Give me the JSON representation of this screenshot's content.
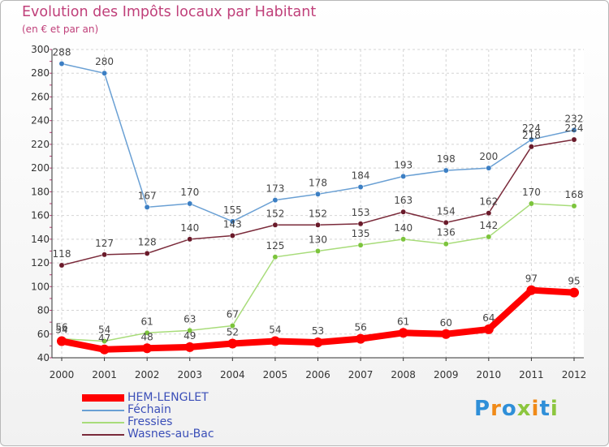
{
  "header": {
    "title": "Evolution des Impôts locaux par Habitant",
    "subtitle": "(en € et par an)"
  },
  "brand": {
    "logo_text": "Proxiti"
  },
  "chart_data": {
    "type": "line",
    "title": "Evolution des Impôts locaux par Habitant",
    "subtitle": "(en € et par an)",
    "xlabel": "",
    "ylabel": "",
    "categories": [
      "2000",
      "2001",
      "2002",
      "2003",
      "2004",
      "2005",
      "2006",
      "2007",
      "2008",
      "2009",
      "2010",
      "2011",
      "2012"
    ],
    "ylim": [
      40,
      300
    ],
    "yticks": [
      40,
      60,
      80,
      100,
      120,
      140,
      160,
      180,
      200,
      220,
      240,
      260,
      280,
      300
    ],
    "grid": true,
    "legend_position": "bottom-left",
    "series": [
      {
        "name": "HEM-LENGLET",
        "color": "#ff0000",
        "emphasis": true,
        "values": [
          54,
          47,
          48,
          49,
          52,
          54,
          53,
          56,
          61,
          60,
          64,
          97,
          95
        ]
      },
      {
        "name": "Féchain",
        "color": "#6aa0d4",
        "marker_color": "#3c7fc4",
        "values": [
          288,
          280,
          167,
          170,
          155,
          173,
          178,
          184,
          193,
          198,
          200,
          224,
          232
        ]
      },
      {
        "name": "Fressies",
        "color": "#a8dc7a",
        "marker_color": "#7cc43c",
        "values": [
          56,
          54,
          61,
          63,
          67,
          125,
          130,
          135,
          140,
          136,
          142,
          170,
          168
        ]
      },
      {
        "name": "Wasnes-au-Bac",
        "color": "#7a2a3a",
        "marker_color": "#6a1a2a",
        "values": [
          118,
          127,
          128,
          140,
          143,
          152,
          152,
          153,
          163,
          154,
          162,
          218,
          224
        ]
      }
    ]
  }
}
